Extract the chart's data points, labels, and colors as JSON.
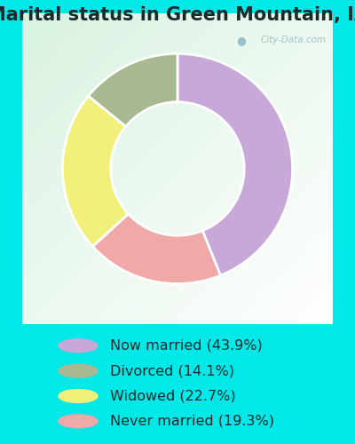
{
  "title": "Marital status in Green Mountain, IA",
  "slices": [
    43.9,
    19.3,
    22.7,
    14.1
  ],
  "labels": [
    "Now married (43.9%)",
    "Divorced (14.1%)",
    "Widowed (22.7%)",
    "Never married (19.3%)"
  ],
  "legend_colors": [
    "#c8a8d8",
    "#a8b890",
    "#f0f07a",
    "#f0a8a8"
  ],
  "pie_colors": [
    "#c8a8d8",
    "#f0a8a8",
    "#f0f07a",
    "#a8b890"
  ],
  "background_color": "#00e8e8",
  "title_fontsize": 15,
  "legend_fontsize": 11.5,
  "watermark": "City-Data.com",
  "start_angle": 90,
  "donut_width": 0.42
}
